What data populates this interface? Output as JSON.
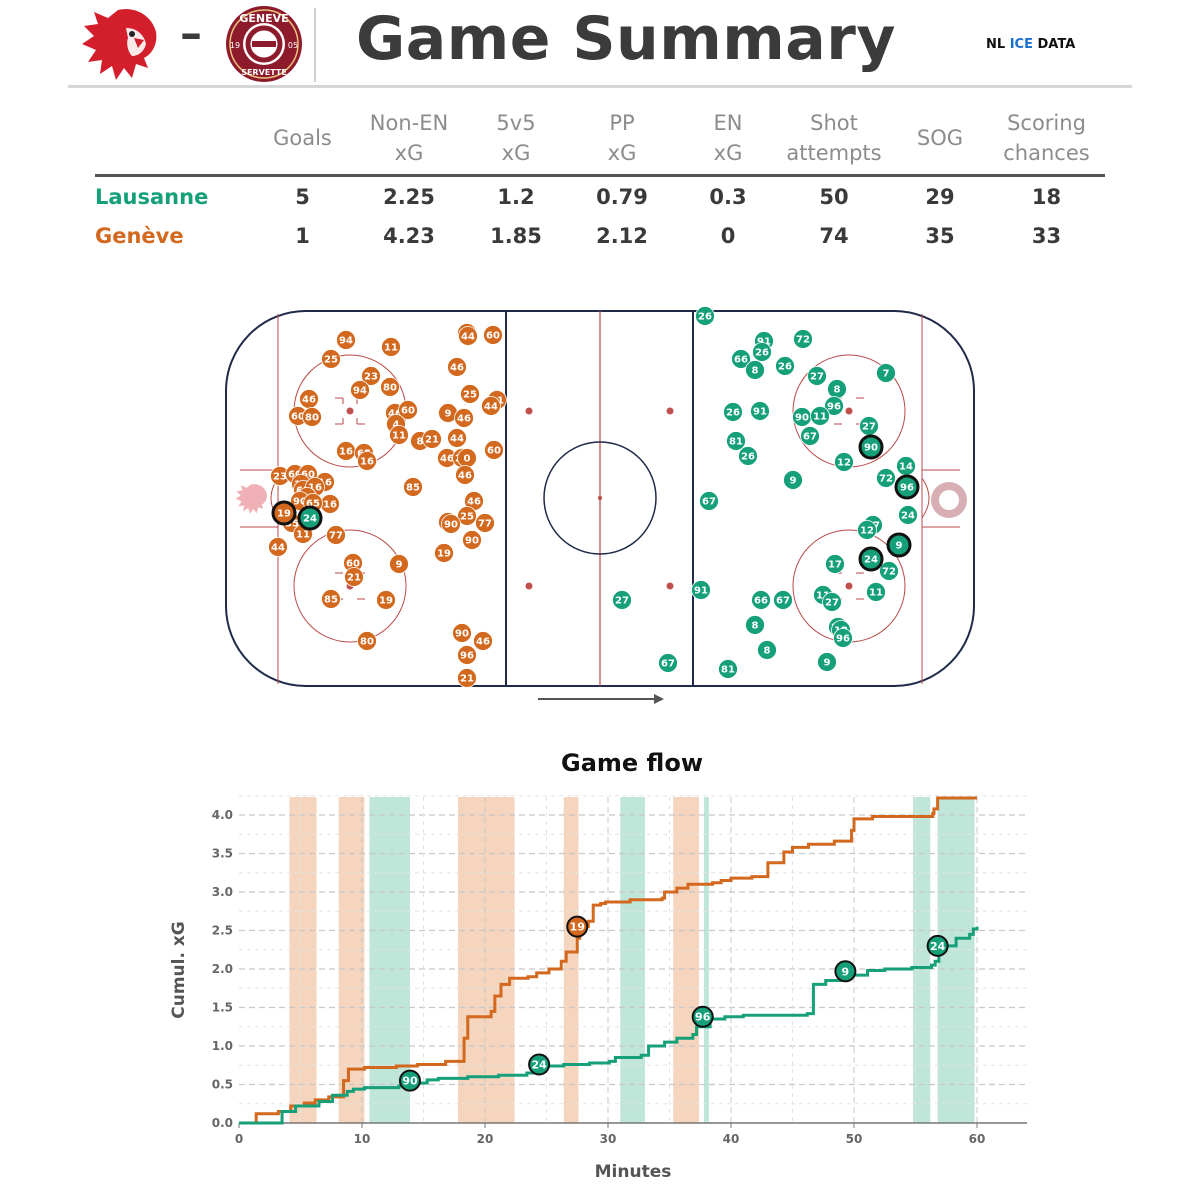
{
  "header": {
    "title": "Game Summary",
    "separator": "–",
    "brand_prefix": "NL ",
    "brand_ice": "ICE",
    "brand_suffix": " DATA",
    "home_logo_icon": "lion-head-icon",
    "away_logo_text_top": "GENEVE",
    "away_logo_text_bottom": "SERVETTE",
    "away_logo_year_left": "19",
    "away_logo_year_right": "05"
  },
  "colors": {
    "lausanne": "#16a07a",
    "geneve": "#d2691e",
    "lausanne_band": "#bfe6d8",
    "geneve_band": "#f5d5bd"
  },
  "stats": {
    "headers": [
      [
        "",
        ""
      ],
      [
        "Goals",
        ""
      ],
      [
        "Non-EN",
        "xG"
      ],
      [
        "5v5",
        "xG"
      ],
      [
        "PP",
        "xG"
      ],
      [
        "EN",
        "xG"
      ],
      [
        "Shot",
        "attempts"
      ],
      [
        "SOG",
        ""
      ],
      [
        "Scoring",
        "chances"
      ]
    ],
    "rows": [
      {
        "team": "Lausanne",
        "values": [
          "5",
          "2.25",
          "1.2",
          "0.79",
          "0.3",
          "50",
          "29",
          "18"
        ]
      },
      {
        "team": "Genève",
        "values": [
          "1",
          "4.23",
          "1.85",
          "2.12",
          "0",
          "74",
          "35",
          "33"
        ]
      }
    ]
  },
  "rink": {
    "direction_arrow": "right-arrow-icon",
    "geneve_shots": [
      [
        "94",
        346,
        340
      ],
      [
        "11",
        391,
        347
      ],
      [
        "25",
        331,
        359
      ],
      [
        "23",
        371,
        376
      ],
      [
        "94",
        360,
        390
      ],
      [
        "80",
        390,
        387
      ],
      [
        "46",
        309,
        399
      ],
      [
        "60",
        298,
        416
      ],
      [
        "80",
        312,
        417
      ],
      [
        "46",
        395,
        413
      ],
      [
        "60",
        408,
        410
      ],
      [
        "4",
        396,
        424
      ],
      [
        "11",
        399,
        435
      ],
      [
        "16",
        346,
        451
      ],
      [
        "65",
        364,
        453
      ],
      [
        "16",
        367,
        461
      ],
      [
        "8",
        420,
        441
      ],
      [
        "21",
        432,
        439
      ],
      [
        "77",
        467,
        333
      ],
      [
        "44",
        468,
        336
      ],
      [
        "60",
        493,
        335
      ],
      [
        "46",
        457,
        367
      ],
      [
        "25",
        470,
        394
      ],
      [
        "11",
        497,
        400
      ],
      [
        "44",
        491,
        406
      ],
      [
        "9",
        448,
        413
      ],
      [
        "46",
        464,
        418
      ],
      [
        "44",
        457,
        438
      ],
      [
        "46",
        447,
        458
      ],
      [
        "20",
        462,
        458
      ],
      [
        "0",
        467,
        458
      ],
      [
        "60",
        494,
        450
      ],
      [
        "46",
        465,
        475
      ],
      [
        "85",
        413,
        487
      ],
      [
        "23",
        280,
        476
      ],
      [
        "60",
        295,
        474
      ],
      [
        "60",
        308,
        474
      ],
      [
        "16",
        325,
        482
      ],
      [
        "16",
        301,
        484
      ],
      [
        "65",
        303,
        490
      ],
      [
        "16",
        315,
        487
      ],
      [
        "18",
        307,
        497
      ],
      [
        "90",
        300,
        501
      ],
      [
        "16",
        330,
        504
      ],
      [
        "65",
        313,
        503
      ],
      [
        "35",
        292,
        523
      ],
      [
        "11",
        303,
        534
      ],
      [
        "44",
        278,
        547
      ],
      [
        "77",
        336,
        535
      ],
      [
        "60",
        353,
        563
      ],
      [
        "21",
        354,
        577
      ],
      [
        "9",
        399,
        564
      ],
      [
        "85",
        331,
        599
      ],
      [
        "19",
        386,
        600
      ],
      [
        "80",
        367,
        641
      ],
      [
        "46",
        474,
        501
      ],
      [
        "25",
        467,
        516
      ],
      [
        "77",
        485,
        523
      ],
      [
        "40",
        448,
        522
      ],
      [
        "90",
        451,
        524
      ],
      [
        "90",
        472,
        540
      ],
      [
        "19",
        444,
        553
      ],
      [
        "90",
        462,
        633
      ],
      [
        "46",
        483,
        641
      ],
      [
        "96",
        467,
        655
      ],
      [
        "21",
        467,
        678
      ]
    ],
    "lausanne_shots": [
      [
        "26",
        705,
        316
      ],
      [
        "91",
        764,
        341
      ],
      [
        "72",
        803,
        339
      ],
      [
        "26",
        762,
        352
      ],
      [
        "66",
        741,
        359
      ],
      [
        "8",
        755,
        370
      ],
      [
        "26",
        785,
        366
      ],
      [
        "27",
        817,
        376
      ],
      [
        "7",
        886,
        373
      ],
      [
        "8",
        837,
        389
      ],
      [
        "96",
        834,
        406
      ],
      [
        "26",
        733,
        412
      ],
      [
        "91",
        760,
        411
      ],
      [
        "90",
        802,
        417
      ],
      [
        "11",
        820,
        416
      ],
      [
        "27",
        869,
        426
      ],
      [
        "67",
        810,
        436
      ],
      [
        "81",
        736,
        441
      ],
      [
        "26",
        748,
        456
      ],
      [
        "12",
        844,
        462
      ],
      [
        "14",
        906,
        466
      ],
      [
        "9",
        793,
        480
      ],
      [
        "72",
        886,
        478
      ],
      [
        "67",
        709,
        501
      ],
      [
        "24",
        908,
        515
      ],
      [
        "17",
        873,
        525
      ],
      [
        "12",
        867,
        530
      ],
      [
        "72",
        889,
        571
      ],
      [
        "17",
        835,
        564
      ],
      [
        "11",
        823,
        595
      ],
      [
        "27",
        832,
        602
      ],
      [
        "11",
        876,
        592
      ],
      [
        "91",
        701,
        590
      ],
      [
        "27",
        622,
        600
      ],
      [
        "66",
        761,
        600
      ],
      [
        "67",
        783,
        600
      ],
      [
        "8",
        755,
        625
      ],
      [
        "22",
        838,
        627
      ],
      [
        "12",
        841,
        630
      ],
      [
        "96",
        843,
        638
      ],
      [
        "8",
        767,
        650
      ],
      [
        "9",
        827,
        662
      ],
      [
        "67",
        668,
        663
      ],
      [
        "81",
        728,
        669
      ]
    ],
    "goals": [
      [
        "19",
        284,
        513,
        "geneve"
      ],
      [
        "24",
        310,
        518,
        "lausanne"
      ],
      [
        "90",
        871,
        447,
        "lausanne"
      ],
      [
        "96",
        907,
        487,
        "lausanne"
      ],
      [
        "24",
        871,
        559,
        "lausanne"
      ],
      [
        "9",
        899,
        545,
        "lausanne"
      ]
    ]
  },
  "chart_data": {
    "type": "line",
    "title": "Game flow",
    "xlabel": "Minutes",
    "ylabel": "Cumul. xG",
    "xlim": [
      0,
      62.5
    ],
    "ylim": [
      0,
      4.25
    ],
    "xticks": [
      0,
      10,
      20,
      30,
      40,
      50,
      60
    ],
    "yticks": [
      0.0,
      0.5,
      1.0,
      1.5,
      2.0,
      2.5,
      3.0,
      3.5,
      4.0
    ],
    "ytick_labels": [
      "0.0",
      "0.5",
      "1.0",
      "1.5",
      "2.0",
      "2.5",
      "3.0",
      "3.5",
      "4.0"
    ],
    "grid": true,
    "series": [
      {
        "team": "geneve",
        "points": [
          [
            0,
            0
          ],
          [
            1.4,
            0.12
          ],
          [
            3.2,
            0.15
          ],
          [
            4.2,
            0.22
          ],
          [
            5.3,
            0.26
          ],
          [
            6.2,
            0.3
          ],
          [
            7.3,
            0.34
          ],
          [
            8.5,
            0.55
          ],
          [
            8.9,
            0.7
          ],
          [
            10.2,
            0.72
          ],
          [
            12.8,
            0.74
          ],
          [
            14.5,
            0.76
          ],
          [
            16.8,
            0.8
          ],
          [
            18.3,
            1.1
          ],
          [
            18.6,
            1.38
          ],
          [
            20.5,
            1.45
          ],
          [
            20.8,
            1.65
          ],
          [
            21.3,
            1.8
          ],
          [
            22.0,
            1.88
          ],
          [
            23.5,
            1.9
          ],
          [
            24.2,
            1.95
          ],
          [
            25.2,
            2.0
          ],
          [
            26.2,
            2.1
          ],
          [
            26.6,
            2.22
          ],
          [
            27.5,
            2.4
          ],
          [
            27.7,
            2.55
          ],
          [
            28.4,
            2.62
          ],
          [
            28.8,
            2.83
          ],
          [
            29.4,
            2.85
          ],
          [
            29.8,
            2.87
          ],
          [
            31.8,
            2.9
          ],
          [
            34.4,
            2.92
          ],
          [
            34.6,
            3.0
          ],
          [
            35.6,
            3.05
          ],
          [
            36.5,
            3.1
          ],
          [
            38.5,
            3.12
          ],
          [
            39.2,
            3.15
          ],
          [
            40.0,
            3.18
          ],
          [
            41.7,
            3.2
          ],
          [
            43.0,
            3.38
          ],
          [
            44.3,
            3.52
          ],
          [
            45.0,
            3.58
          ],
          [
            46.3,
            3.62
          ],
          [
            48.4,
            3.66
          ],
          [
            49.8,
            3.8
          ],
          [
            50.0,
            3.95
          ],
          [
            51.5,
            3.98
          ],
          [
            56.4,
            4.02
          ],
          [
            56.5,
            4.08
          ],
          [
            56.8,
            4.22
          ],
          [
            60,
            4.22
          ]
        ]
      },
      {
        "team": "lausanne",
        "points": [
          [
            0,
            0
          ],
          [
            3.5,
            0.15
          ],
          [
            4.6,
            0.22
          ],
          [
            6.5,
            0.28
          ],
          [
            7.6,
            0.36
          ],
          [
            8.8,
            0.41
          ],
          [
            9.3,
            0.44
          ],
          [
            10.2,
            0.46
          ],
          [
            13.0,
            0.48
          ],
          [
            14.0,
            0.52
          ],
          [
            15.3,
            0.56
          ],
          [
            16.2,
            0.58
          ],
          [
            18.6,
            0.6
          ],
          [
            21.1,
            0.62
          ],
          [
            23.4,
            0.65
          ],
          [
            24.6,
            0.74
          ],
          [
            26.4,
            0.76
          ],
          [
            28.5,
            0.78
          ],
          [
            30.1,
            0.8
          ],
          [
            30.6,
            0.85
          ],
          [
            32.7,
            0.88
          ],
          [
            33.3,
            1.0
          ],
          [
            34.6,
            1.05
          ],
          [
            35.6,
            1.1
          ],
          [
            36.9,
            1.15
          ],
          [
            37.2,
            1.25
          ],
          [
            38.3,
            1.35
          ],
          [
            39.5,
            1.38
          ],
          [
            41.0,
            1.4
          ],
          [
            46.2,
            1.42
          ],
          [
            46.7,
            1.8
          ],
          [
            47.7,
            1.85
          ],
          [
            48.9,
            1.92
          ],
          [
            51.1,
            1.98
          ],
          [
            52.5,
            2.0
          ],
          [
            54.7,
            2.02
          ],
          [
            56.3,
            2.05
          ],
          [
            56.6,
            2.1
          ],
          [
            56.9,
            2.22
          ],
          [
            57.2,
            2.3
          ],
          [
            58.3,
            2.4
          ],
          [
            59.4,
            2.45
          ],
          [
            59.7,
            2.52
          ],
          [
            60,
            2.55
          ]
        ]
      }
    ],
    "bands": [
      [
        "geneve",
        4.1,
        6.3
      ],
      [
        "geneve",
        8.1,
        10.2
      ],
      [
        "lausanne",
        10.6,
        13.9
      ],
      [
        "geneve",
        17.8,
        22.4
      ],
      [
        "geneve",
        26.4,
        27.6
      ],
      [
        "lausanne",
        31.0,
        33.0
      ],
      [
        "geneve",
        35.3,
        37.4
      ],
      [
        "lausanne",
        37.8,
        38.2
      ],
      [
        "lausanne",
        54.8,
        56.2
      ],
      [
        "lausanne",
        56.8,
        59.8
      ]
    ],
    "goal_markers": [
      [
        "19",
        27.5,
        2.55,
        "geneve"
      ],
      [
        "90",
        13.9,
        0.55,
        "lausanne"
      ],
      [
        "24",
        24.4,
        0.76,
        "lausanne"
      ],
      [
        "96",
        37.7,
        1.38,
        "lausanne"
      ],
      [
        "9",
        49.3,
        1.97,
        "lausanne"
      ],
      [
        "24",
        56.8,
        2.3,
        "lausanne"
      ]
    ]
  }
}
